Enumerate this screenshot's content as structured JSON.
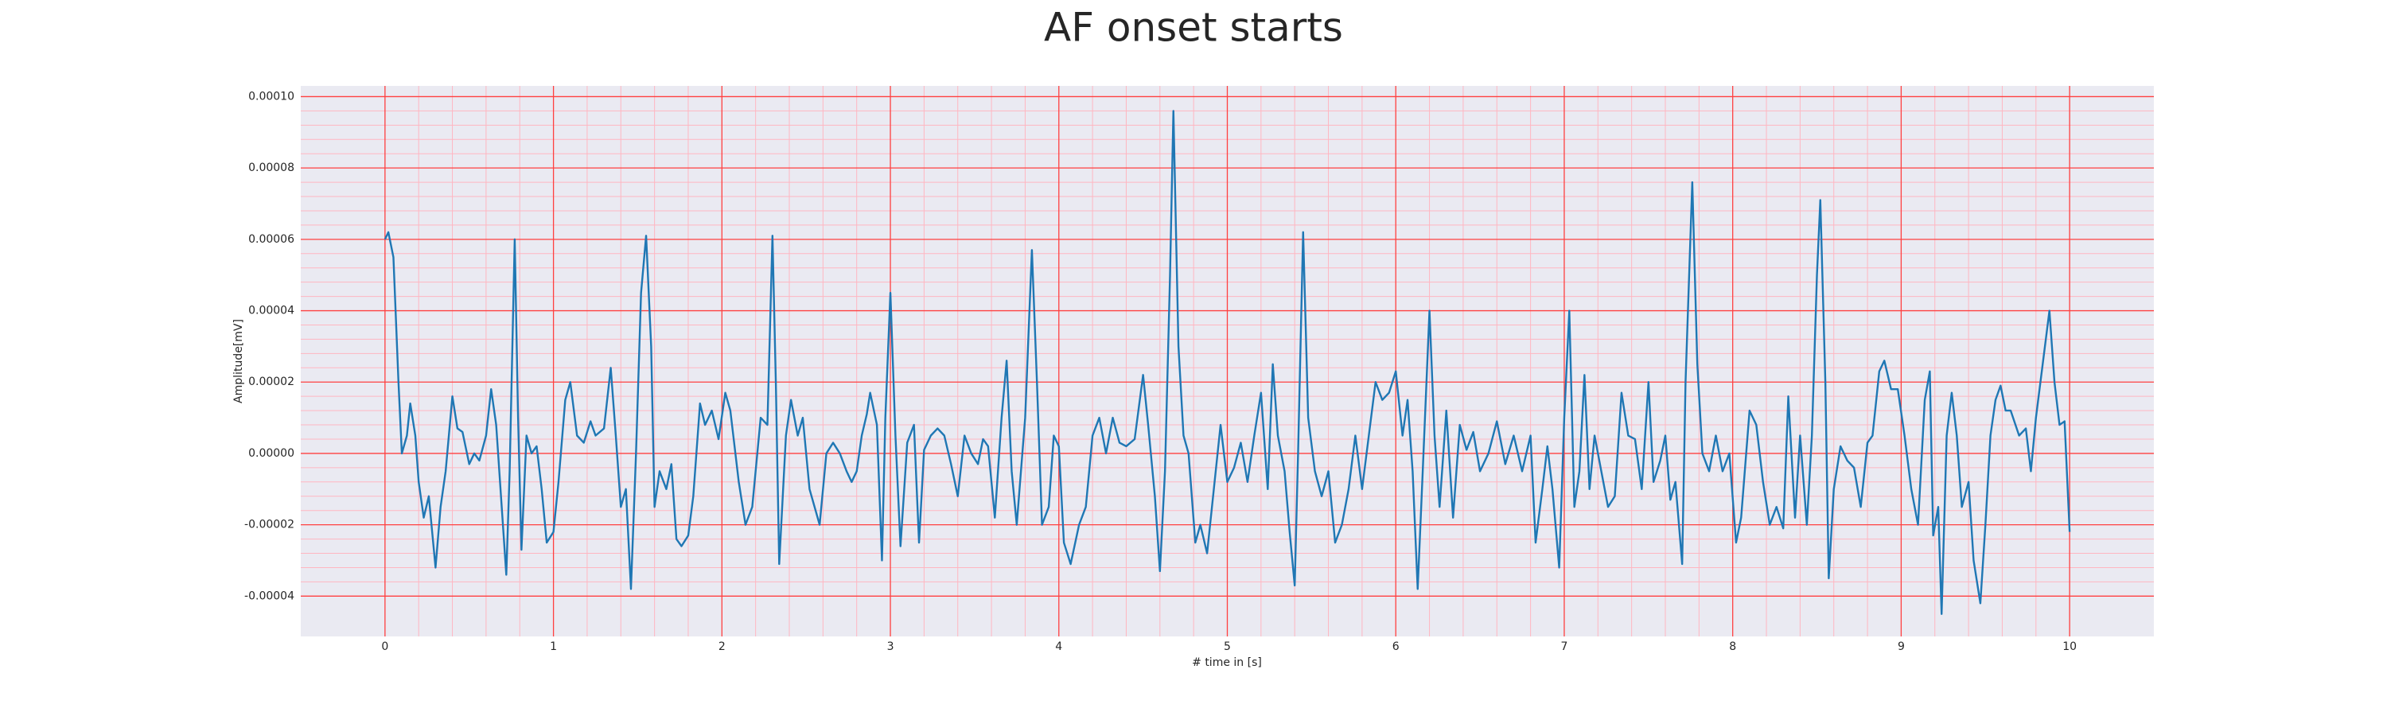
{
  "chart_data": {
    "type": "line",
    "title": "AF onset starts",
    "x_label": "# time in [s]",
    "y_label": "Amplitude[mV]",
    "color": "#1f77b4",
    "grid": true,
    "minor_grid": true,
    "xlim": [
      -0.5,
      10.5
    ],
    "xticks": [
      0,
      1,
      2,
      3,
      4,
      5,
      6,
      7,
      8,
      9,
      10
    ],
    "ylim": [
      -5.13e-05,
      0.000103
    ],
    "yticks": [
      {
        "value": -4e-05,
        "label": "-0.00004"
      },
      {
        "value": -2e-05,
        "label": "-0.00002"
      },
      {
        "value": 0,
        "label": "0.00000"
      },
      {
        "value": 2e-05,
        "label": "0.00002"
      },
      {
        "value": 4e-05,
        "label": "0.00004"
      },
      {
        "value": 6e-05,
        "label": "0.00006"
      },
      {
        "value": 8e-05,
        "label": "0.00008"
      },
      {
        "value": 0.0001,
        "label": "0.00010"
      }
    ],
    "x": [
      0.0,
      0.02,
      0.05,
      0.08,
      0.1,
      0.13,
      0.15,
      0.18,
      0.2,
      0.23,
      0.26,
      0.3,
      0.33,
      0.36,
      0.4,
      0.43,
      0.46,
      0.5,
      0.53,
      0.56,
      0.6,
      0.63,
      0.66,
      0.7,
      0.72,
      0.74,
      0.77,
      0.79,
      0.81,
      0.84,
      0.87,
      0.9,
      0.93,
      0.96,
      1.0,
      1.03,
      1.07,
      1.1,
      1.14,
      1.18,
      1.22,
      1.25,
      1.3,
      1.34,
      1.37,
      1.4,
      1.43,
      1.46,
      1.49,
      1.52,
      1.55,
      1.58,
      1.6,
      1.63,
      1.67,
      1.7,
      1.73,
      1.76,
      1.8,
      1.83,
      1.87,
      1.9,
      1.94,
      1.98,
      2.02,
      2.05,
      2.1,
      2.14,
      2.18,
      2.2,
      2.23,
      2.27,
      2.3,
      2.32,
      2.34,
      2.38,
      2.41,
      2.45,
      2.48,
      2.52,
      2.55,
      2.58,
      2.62,
      2.66,
      2.7,
      2.74,
      2.77,
      2.8,
      2.83,
      2.86,
      2.88,
      2.92,
      2.95,
      2.97,
      3.0,
      3.03,
      3.06,
      3.1,
      3.14,
      3.17,
      3.2,
      3.24,
      3.28,
      3.32,
      3.36,
      3.4,
      3.44,
      3.48,
      3.52,
      3.55,
      3.58,
      3.62,
      3.66,
      3.69,
      3.72,
      3.75,
      3.8,
      3.84,
      3.87,
      3.9,
      3.94,
      3.97,
      4.0,
      4.03,
      4.07,
      4.12,
      4.16,
      4.2,
      4.24,
      4.28,
      4.32,
      4.36,
      4.4,
      4.45,
      4.5,
      4.53,
      4.57,
      4.6,
      4.63,
      4.66,
      4.68,
      4.71,
      4.74,
      4.77,
      4.81,
      4.84,
      4.88,
      4.92,
      4.96,
      5.0,
      5.04,
      5.08,
      5.12,
      5.16,
      5.2,
      5.24,
      5.27,
      5.3,
      5.34,
      5.37,
      5.4,
      5.42,
      5.45,
      5.48,
      5.52,
      5.56,
      5.6,
      5.64,
      5.68,
      5.72,
      5.76,
      5.8,
      5.84,
      5.88,
      5.92,
      5.96,
      6.0,
      6.04,
      6.07,
      6.1,
      6.13,
      6.16,
      6.2,
      6.23,
      6.26,
      6.3,
      6.34,
      6.38,
      6.42,
      6.46,
      6.5,
      6.55,
      6.6,
      6.65,
      6.7,
      6.75,
      6.8,
      6.83,
      6.87,
      6.9,
      6.93,
      6.97,
      7.0,
      7.03,
      7.06,
      7.09,
      7.12,
      7.15,
      7.18,
      7.22,
      7.26,
      7.3,
      7.34,
      7.38,
      7.42,
      7.46,
      7.5,
      7.53,
      7.57,
      7.6,
      7.63,
      7.66,
      7.7,
      7.72,
      7.76,
      7.79,
      7.82,
      7.86,
      7.9,
      7.94,
      7.98,
      8.02,
      8.05,
      8.1,
      8.14,
      8.18,
      8.22,
      8.26,
      8.3,
      8.33,
      8.37,
      8.4,
      8.44,
      8.47,
      8.5,
      8.52,
      8.55,
      8.57,
      8.6,
      8.64,
      8.68,
      8.72,
      8.76,
      8.8,
      8.83,
      8.87,
      8.9,
      8.94,
      8.98,
      9.02,
      9.06,
      9.1,
      9.14,
      9.17,
      9.19,
      9.22,
      9.24,
      9.27,
      9.3,
      9.33,
      9.36,
      9.4,
      9.43,
      9.47,
      9.5,
      9.53,
      9.56,
      9.59,
      9.62,
      9.65,
      9.7,
      9.74,
      9.77,
      9.8,
      9.84,
      9.88,
      9.91,
      9.94,
      9.97,
      10.0
    ],
    "values": [
      6e-05,
      6.2e-05,
      5.5e-05,
      2e-05,
      0.0,
      5e-06,
      1.4e-05,
      5e-06,
      -8e-06,
      -1.8e-05,
      -1.2e-05,
      -3.2e-05,
      -1.5e-05,
      -5e-06,
      1.6e-05,
      7e-06,
      6e-06,
      -3e-06,
      0.0,
      -2e-06,
      5e-06,
      1.8e-05,
      8e-06,
      -2e-05,
      -3.4e-05,
      -5e-06,
      6e-05,
      1e-05,
      -2.7e-05,
      5e-06,
      0.0,
      2e-06,
      -1e-05,
      -2.5e-05,
      -2.2e-05,
      -8e-06,
      1.5e-05,
      2e-05,
      5e-06,
      3e-06,
      9e-06,
      5e-06,
      7e-06,
      2.4e-05,
      5e-06,
      -1.5e-05,
      -1e-05,
      -3.8e-05,
      0.0,
      4.5e-05,
      6.1e-05,
      3e-05,
      -1.5e-05,
      -5e-06,
      -1e-05,
      -3e-06,
      -2.4e-05,
      -2.6e-05,
      -2.3e-05,
      -1.2e-05,
      1.4e-05,
      8e-06,
      1.2e-05,
      4e-06,
      1.7e-05,
      1.2e-05,
      -8e-06,
      -2e-05,
      -1.5e-05,
      -5e-06,
      1e-05,
      8e-06,
      6.1e-05,
      2e-05,
      -3.1e-05,
      5e-06,
      1.5e-05,
      5e-06,
      1e-05,
      -1e-05,
      -1.5e-05,
      -2e-05,
      0.0,
      3e-06,
      0.0,
      -5e-06,
      -8e-06,
      -5e-06,
      5e-06,
      1.1e-05,
      1.7e-05,
      8e-06,
      -3e-05,
      1e-05,
      4.5e-05,
      5e-06,
      -2.6e-05,
      3e-06,
      8e-06,
      -2.5e-05,
      1e-06,
      5e-06,
      7e-06,
      5e-06,
      -3e-06,
      -1.2e-05,
      5e-06,
      0.0,
      -3e-06,
      4e-06,
      2e-06,
      -1.8e-05,
      1e-05,
      2.6e-05,
      -5e-06,
      -2e-05,
      1e-05,
      5.7e-05,
      2e-05,
      -2e-05,
      -1.5e-05,
      5e-06,
      2e-06,
      -2.5e-05,
      -3.1e-05,
      -2e-05,
      -1.5e-05,
      5e-06,
      1e-05,
      0.0,
      1e-05,
      3e-06,
      2e-06,
      4e-06,
      2.2e-05,
      8e-06,
      -1.2e-05,
      -3.3e-05,
      -5e-06,
      5e-05,
      9.6e-05,
      3e-05,
      5e-06,
      0.0,
      -2.5e-05,
      -2e-05,
      -2.8e-05,
      -1e-05,
      8e-06,
      -8e-06,
      -4e-06,
      3e-06,
      -8e-06,
      5e-06,
      1.7e-05,
      -1e-05,
      2.5e-05,
      5e-06,
      -5e-06,
      -2.2e-05,
      -3.7e-05,
      0.0,
      6.2e-05,
      1e-05,
      -5e-06,
      -1.2e-05,
      -5e-06,
      -2.5e-05,
      -2e-05,
      -1e-05,
      5e-06,
      -1e-05,
      5e-06,
      2e-05,
      1.5e-05,
      1.7e-05,
      2.3e-05,
      5e-06,
      1.5e-05,
      -5e-06,
      -3.8e-05,
      -5e-06,
      4e-05,
      5e-06,
      -1.5e-05,
      1.2e-05,
      -1.8e-05,
      8e-06,
      1e-06,
      6e-06,
      -5e-06,
      0.0,
      9e-06,
      -3e-06,
      5e-06,
      -5e-06,
      5e-06,
      -2.5e-05,
      -1e-05,
      2e-06,
      -1e-05,
      -3.2e-05,
      1e-05,
      4e-05,
      -1.5e-05,
      -5e-06,
      2.2e-05,
      -1e-05,
      5e-06,
      -5e-06,
      -1.5e-05,
      -1.2e-05,
      1.7e-05,
      5e-06,
      4e-06,
      -1e-05,
      2e-05,
      -8e-06,
      -2e-06,
      5e-06,
      -1.3e-05,
      -8e-06,
      -3.1e-05,
      2e-05,
      7.6e-05,
      2.5e-05,
      0.0,
      -5e-06,
      5e-06,
      -5e-06,
      0.0,
      -2.5e-05,
      -1.8e-05,
      1.2e-05,
      8e-06,
      -8e-06,
      -2e-05,
      -1.5e-05,
      -2.1e-05,
      1.6e-05,
      -1.8e-05,
      5e-06,
      -2e-05,
      5e-06,
      5e-05,
      7.1e-05,
      2e-05,
      -3.5e-05,
      -1e-05,
      2e-06,
      -2e-06,
      -4e-06,
      -1.5e-05,
      3e-06,
      5e-06,
      2.3e-05,
      2.6e-05,
      1.8e-05,
      1.8e-05,
      5e-06,
      -1e-05,
      -2e-05,
      1.5e-05,
      2.3e-05,
      -2.3e-05,
      -1.5e-05,
      -4.5e-05,
      5e-06,
      1.7e-05,
      5e-06,
      -1.5e-05,
      -8e-06,
      -3e-05,
      -4.2e-05,
      -2e-05,
      5e-06,
      1.5e-05,
      1.9e-05,
      1.2e-05,
      1.2e-05,
      5e-06,
      7e-06,
      -5e-06,
      1e-05,
      2.5e-05,
      4e-05,
      2e-05,
      8e-06,
      9e-06,
      -2.2e-05
    ]
  }
}
